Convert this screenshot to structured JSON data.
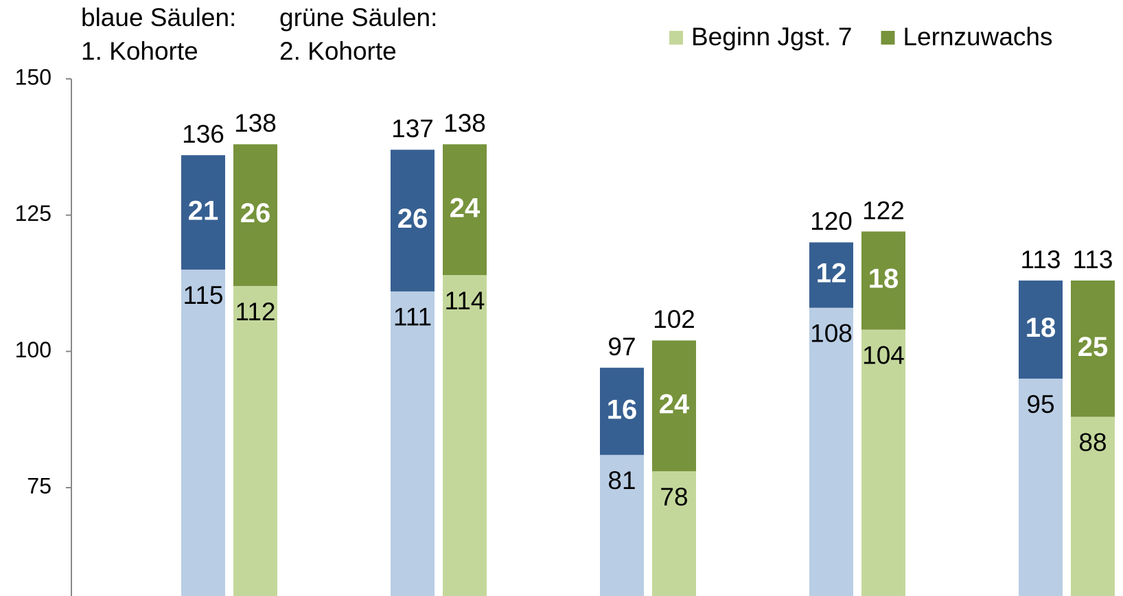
{
  "chart_data": {
    "type": "stacked-bar",
    "annotations": [
      "blaue Säulen:",
      "1. Kohorte",
      "grüne Säulen:",
      "2. Kohorte"
    ],
    "categories": [
      null,
      null,
      null,
      null,
      null
    ],
    "series": [
      {
        "color": "#b9cde5",
        "stack": 1,
        "values": [
          115,
          111,
          81,
          108,
          95
        ]
      },
      {
        "color": "#376092",
        "stack": 1,
        "values": [
          21,
          26,
          16,
          12,
          18
        ],
        "totals": [
          136,
          137,
          97,
          120,
          113
        ]
      },
      {
        "name": "Beginn Jgst. 7",
        "color": "#c4d79b",
        "stack": 2,
        "values": [
          112,
          114,
          78,
          104,
          88
        ]
      },
      {
        "name": "Lernzuwachs",
        "color": "#77933c",
        "stack": 2,
        "values": [
          26,
          24,
          24,
          18,
          25
        ],
        "totals": [
          138,
          138,
          102,
          122,
          113
        ]
      }
    ],
    "ylim": [
      55,
      150
    ],
    "yticks": [
      75,
      100,
      125,
      150
    ],
    "legend": "top-right"
  }
}
